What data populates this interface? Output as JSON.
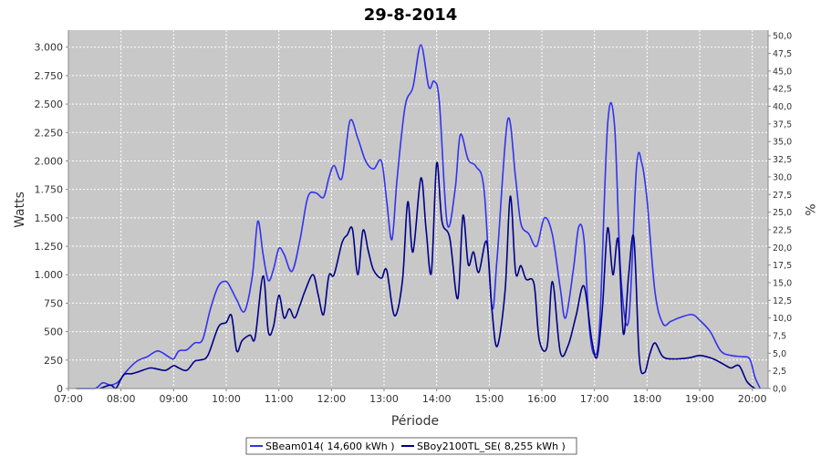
{
  "chart_data": {
    "type": "line",
    "title": "29-8-2014",
    "xlabel": "Période",
    "ylabel": "Watts",
    "y2label": "%",
    "xlim": [
      7.0,
      20.3
    ],
    "ylim": [
      0,
      3150
    ],
    "y2lim": [
      0,
      50.8
    ],
    "x_ticks": [
      7,
      8,
      9,
      10,
      11,
      12,
      13,
      14,
      15,
      16,
      17,
      18,
      19,
      20
    ],
    "x_tick_labels": [
      "07:00",
      "08:00",
      "09:00",
      "10:00",
      "11:00",
      "12:00",
      "13:00",
      "14:00",
      "15:00",
      "16:00",
      "17:00",
      "18:00",
      "19:00",
      "20:00"
    ],
    "y_ticks": [
      0,
      250,
      500,
      750,
      1000,
      1250,
      1500,
      1750,
      2000,
      2250,
      2500,
      2750,
      3000
    ],
    "y_tick_labels": [
      "0",
      "250",
      "500",
      "750",
      "1.000",
      "1.250",
      "1.500",
      "1.750",
      "2.000",
      "2.250",
      "2.500",
      "2.750",
      "3.000"
    ],
    "y2_ticks": [
      0,
      2.5,
      5,
      7.5,
      10,
      12.5,
      15,
      17.5,
      20,
      22.5,
      25,
      27.5,
      30,
      32.5,
      35,
      37.5,
      40,
      42.5,
      45,
      47.5,
      50
    ],
    "y2_tick_labels": [
      "0,0",
      "2,5",
      "5,0",
      "7,5",
      "10,0",
      "12,5",
      "15,0",
      "17,5",
      "20,0",
      "22,5",
      "25,0",
      "27,5",
      "30,0",
      "32,5",
      "35,0",
      "37,5",
      "40,0",
      "42,5",
      "45,0",
      "47,5",
      "50,0"
    ],
    "grid": true,
    "legend_position": "bottom",
    "colors": {
      "plot_background": "#c8c8c8",
      "grid": "#ffffff"
    },
    "series": [
      {
        "name": "SBeam014( 14,600 kWh )",
        "color": "#3333ee",
        "x": [
          7.15,
          7.5,
          7.65,
          7.8,
          7.95,
          8.1,
          8.3,
          8.5,
          8.7,
          8.9,
          9.0,
          9.1,
          9.25,
          9.4,
          9.55,
          9.7,
          9.85,
          10.0,
          10.1,
          10.2,
          10.35,
          10.5,
          10.6,
          10.7,
          10.8,
          10.9,
          11.0,
          11.1,
          11.25,
          11.4,
          11.55,
          11.7,
          11.85,
          11.95,
          12.05,
          12.2,
          12.35,
          12.5,
          12.65,
          12.8,
          12.95,
          13.05,
          13.15,
          13.25,
          13.4,
          13.55,
          13.7,
          13.85,
          13.95,
          14.05,
          14.2,
          14.35,
          14.45,
          14.6,
          14.75,
          14.9,
          15.05,
          15.15,
          15.35,
          15.5,
          15.6,
          15.75,
          15.9,
          16.05,
          16.2,
          16.35,
          16.45,
          16.6,
          16.7,
          16.8,
          16.9,
          17.0,
          17.1,
          17.25,
          17.38,
          17.5,
          17.65,
          17.8,
          17.9,
          18.0,
          18.15,
          18.3,
          18.45,
          18.6,
          18.85,
          19.0,
          19.2,
          19.4,
          19.6,
          19.8,
          19.95,
          20.05,
          20.15
        ],
        "y": [
          0,
          0,
          50,
          30,
          60,
          150,
          240,
          280,
          330,
          280,
          260,
          330,
          340,
          400,
          430,
          700,
          900,
          940,
          870,
          780,
          680,
          1000,
          1470,
          1180,
          950,
          1050,
          1230,
          1180,
          1030,
          1300,
          1680,
          1720,
          1680,
          1850,
          1960,
          1850,
          2350,
          2200,
          2000,
          1930,
          2000,
          1650,
          1310,
          1850,
          2480,
          2650,
          3020,
          2650,
          2700,
          2520,
          1450,
          1750,
          2230,
          2010,
          1950,
          1750,
          720,
          1150,
          2360,
          1850,
          1450,
          1360,
          1250,
          1500,
          1350,
          880,
          620,
          1050,
          1420,
          1310,
          550,
          300,
          580,
          2320,
          2320,
          1000,
          600,
          1950,
          1980,
          1650,
          850,
          570,
          590,
          620,
          650,
          600,
          500,
          330,
          290,
          280,
          260,
          100,
          0
        ]
      },
      {
        "name": "SBoy2100TL_SE( 8,255 kWh )",
        "color": "#000088",
        "x": [
          7.6,
          7.8,
          7.9,
          8.05,
          8.2,
          8.35,
          8.55,
          8.7,
          8.85,
          9.0,
          9.1,
          9.25,
          9.4,
          9.5,
          9.65,
          9.85,
          10.0,
          10.1,
          10.2,
          10.3,
          10.45,
          10.55,
          10.7,
          10.8,
          10.9,
          11.0,
          11.1,
          11.2,
          11.3,
          11.4,
          11.5,
          11.65,
          11.75,
          11.85,
          11.95,
          12.05,
          12.2,
          12.3,
          12.4,
          12.5,
          12.6,
          12.7,
          12.8,
          12.95,
          13.05,
          13.2,
          13.35,
          13.45,
          13.55,
          13.7,
          13.8,
          13.9,
          14.0,
          14.1,
          14.25,
          14.4,
          14.5,
          14.6,
          14.7,
          14.8,
          14.95,
          15.05,
          15.15,
          15.3,
          15.4,
          15.5,
          15.6,
          15.7,
          15.85,
          15.95,
          16.1,
          16.2,
          16.35,
          16.5,
          16.65,
          16.8,
          16.95,
          17.05,
          17.15,
          17.25,
          17.35,
          17.45,
          17.55,
          17.65,
          17.75,
          17.85,
          17.95,
          18.05,
          18.15,
          18.3,
          18.5,
          18.8,
          19.0,
          19.2,
          19.35,
          19.5,
          19.6,
          19.75,
          19.9,
          20.05
        ],
        "y": [
          0,
          30,
          0,
          120,
          130,
          150,
          180,
          170,
          160,
          200,
          180,
          160,
          240,
          250,
          290,
          540,
          580,
          640,
          330,
          420,
          470,
          450,
          990,
          500,
          550,
          820,
          620,
          700,
          620,
          730,
          860,
          1000,
          820,
          650,
          990,
          1000,
          1280,
          1350,
          1400,
          1000,
          1390,
          1210,
          1040,
          970,
          1040,
          640,
          950,
          1640,
          1200,
          1850,
          1390,
          1020,
          1980,
          1470,
          1320,
          790,
          1520,
          1090,
          1200,
          1020,
          1290,
          700,
          370,
          860,
          1690,
          1020,
          1080,
          960,
          920,
          430,
          370,
          940,
          320,
          380,
          640,
          900,
          420,
          280,
          700,
          1410,
          1000,
          1310,
          480,
          1000,
          1320,
          280,
          140,
          300,
          400,
          280,
          260,
          270,
          290,
          270,
          240,
          200,
          180,
          200,
          60,
          0
        ]
      }
    ]
  }
}
